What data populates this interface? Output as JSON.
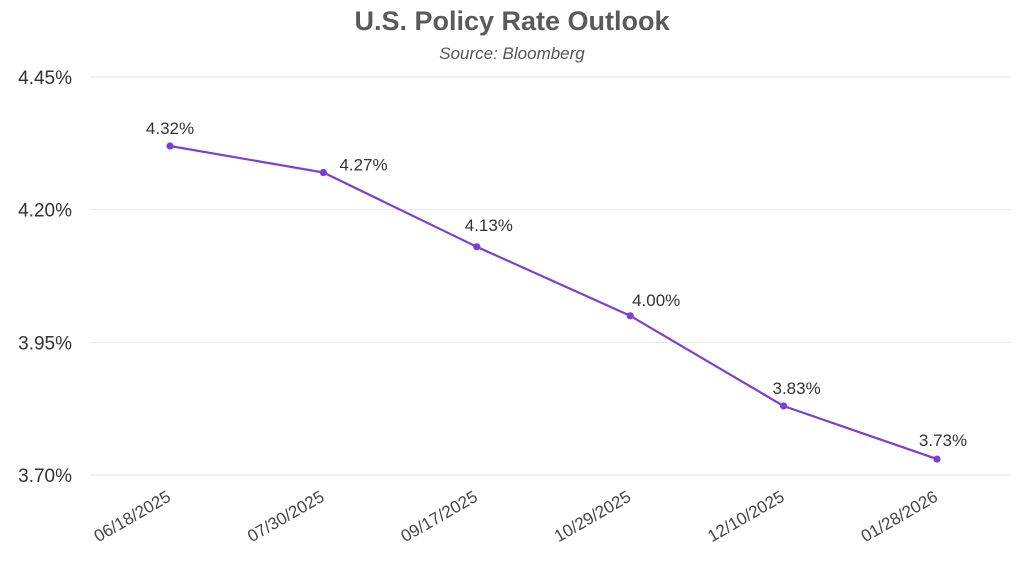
{
  "chart_data": {
    "type": "line",
    "title": "U.S. Policy Rate Outlook",
    "subtitle": "Source: Bloomberg",
    "categories": [
      "06/18/2025",
      "07/30/2025",
      "09/17/2025",
      "10/29/2025",
      "12/10/2025",
      "01/28/2026"
    ],
    "series": [
      {
        "values": [
          4.32,
          4.27,
          4.13,
          4.0,
          3.83,
          3.73
        ],
        "labels": [
          "4.32%",
          "4.27%",
          "4.13%",
          "4.00%",
          "3.83%",
          "3.73%"
        ]
      }
    ],
    "yticks": [
      "3.70%",
      "3.95%",
      "4.20%",
      "4.45%"
    ],
    "ytick_values": [
      3.7,
      3.95,
      4.2,
      4.45
    ],
    "ylim": [
      3.7,
      4.45
    ],
    "grid": true,
    "colors": {
      "line": "#7b3fd6",
      "grid": "#e6e6e6"
    }
  }
}
